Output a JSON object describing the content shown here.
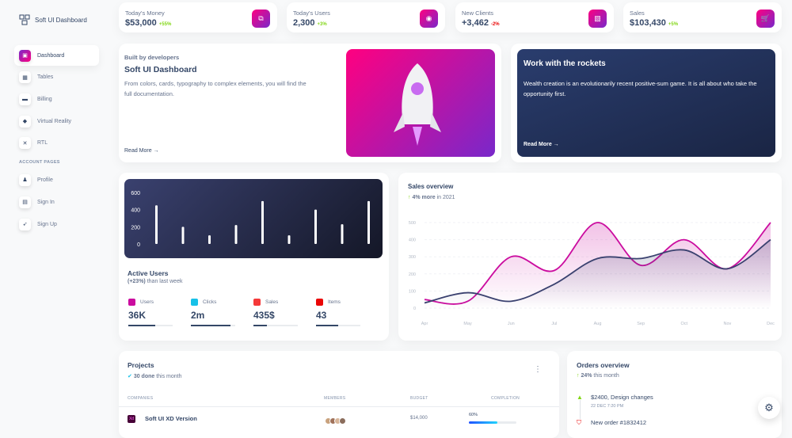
{
  "sidebar": {
    "brand": "Soft UI Dashboard",
    "items": [
      {
        "label": "Dashboard",
        "icon": "shop-icon",
        "glyph": "▣",
        "active": true
      },
      {
        "label": "Tables",
        "icon": "office-icon",
        "glyph": "▦"
      },
      {
        "label": "Billing",
        "icon": "credit-card-icon",
        "glyph": "▬"
      },
      {
        "label": "Virtual Reality",
        "icon": "box-icon",
        "glyph": "◆"
      },
      {
        "label": "RTL",
        "icon": "settings-icon",
        "glyph": "✕"
      }
    ],
    "section": "ACCOUNT PAGES",
    "account_items": [
      {
        "label": "Profile",
        "icon": "user-icon",
        "glyph": "♟"
      },
      {
        "label": "Sign In",
        "icon": "document-icon",
        "glyph": "▤"
      },
      {
        "label": "Sign Up",
        "icon": "rocket-icon",
        "glyph": "➶"
      }
    ]
  },
  "stats": [
    {
      "label": "Today's Money",
      "value": "$53,000",
      "change": "+55%",
      "positive": true,
      "icon": "money-icon",
      "glyph": "⧉"
    },
    {
      "label": "Today's Users",
      "value": "2,300",
      "change": "+3%",
      "positive": true,
      "icon": "globe-icon",
      "glyph": "◉"
    },
    {
      "label": "New Clients",
      "value": "+3,462",
      "change": "-2%",
      "positive": false,
      "icon": "document-icon",
      "glyph": "▧"
    },
    {
      "label": "Sales",
      "value": "$103,430",
      "change": "+5%",
      "positive": true,
      "icon": "cart-icon",
      "glyph": "🛒"
    }
  ],
  "builder": {
    "kicker": "Built by developers",
    "title": "Soft UI Dashboard",
    "text": "From colors, cards, typography to complex elements, you will find the full documentation.",
    "link": "Read More →"
  },
  "rockets": {
    "title": "Work with the rockets",
    "text": "Wealth creation is an evolutionarily recent positive-sum game. It is all about who take the opportunity first.",
    "link": "Read More →"
  },
  "active_users": {
    "title": "Active Users",
    "subtitle_bold": "(+23%)",
    "subtitle": " than last week",
    "metrics": [
      {
        "label": "Users",
        "value": "36K",
        "progress": 60,
        "color": "#cb0c9f"
      },
      {
        "label": "Clicks",
        "value": "2m",
        "progress": 90,
        "color": "#17c1e8"
      },
      {
        "label": "Sales",
        "value": "435$",
        "progress": 30,
        "color": "#f53939"
      },
      {
        "label": "Items",
        "value": "43",
        "progress": 50,
        "color": "#ea0606"
      }
    ]
  },
  "colors": {
    "primary": "#cb0c9f",
    "dark": "#344767",
    "success": "#82d616"
  },
  "chart_data": [
    {
      "type": "bar",
      "ylim": [
        0,
        600
      ],
      "yticks": [
        0,
        200,
        400,
        600
      ],
      "values": [
        450,
        200,
        100,
        220,
        500,
        100,
        400,
        230,
        500
      ],
      "grid": false
    },
    {
      "type": "line",
      "title": "Sales overview",
      "subtitle_bold": "4% more",
      "subtitle": " in 2021",
      "categories": [
        "Apr",
        "May",
        "Jun",
        "Jul",
        "Aug",
        "Sep",
        "Oct",
        "Nov",
        "Dec"
      ],
      "ylim": [
        0,
        500
      ],
      "yticks": [
        0,
        100,
        200,
        300,
        400,
        500
      ],
      "grid": true,
      "series": [
        {
          "values": [
            50,
            40,
            300,
            220,
            500,
            250,
            400,
            230,
            500
          ],
          "color": "#cb0c9f"
        },
        {
          "values": [
            30,
            90,
            40,
            140,
            290,
            290,
            340,
            230,
            400
          ],
          "color": "#3a416f"
        }
      ]
    }
  ],
  "projects": {
    "title": "Projects",
    "done": "30 done",
    "done_suffix": " this month",
    "columns": [
      "COMPANIES",
      "MEMBERS",
      "BUDGET",
      "COMPLETION"
    ],
    "rows": [
      {
        "company": "Soft UI XD Version",
        "logo": "Xd",
        "budget": "$14,000",
        "completion": "60%",
        "progress": 60
      }
    ]
  },
  "orders": {
    "title": "Orders overview",
    "change": "24%",
    "suffix": " this month",
    "items": [
      {
        "title": "$2400, Design changes",
        "date": "22 DEC 7:20 PM",
        "icon": "bell-icon"
      },
      {
        "title": "New order #1832412",
        "icon": "html5-icon"
      }
    ]
  }
}
